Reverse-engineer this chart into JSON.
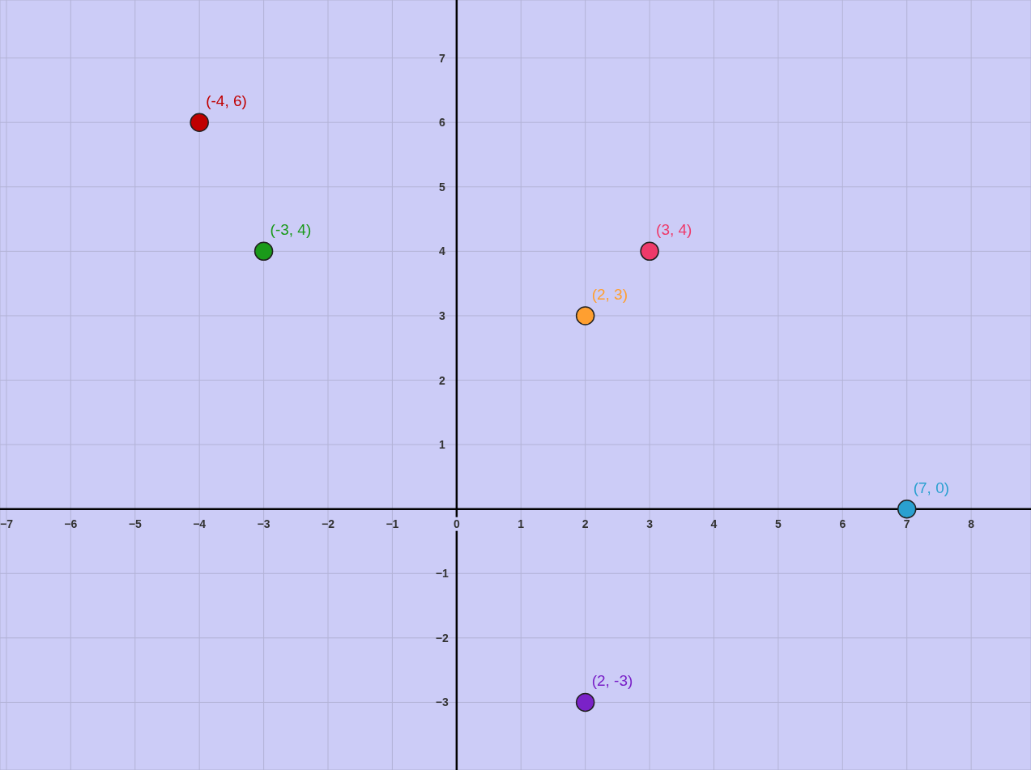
{
  "chart_data": {
    "type": "scatter",
    "x": [
      -4,
      -3,
      3,
      2,
      7,
      2
    ],
    "values": [
      6,
      4,
      4,
      3,
      0,
      -3
    ],
    "colors": [
      "#c00000",
      "#1a9a1a",
      "#ee3a6a",
      "#ff9f30",
      "#2aa0d0",
      "#7a22c8"
    ],
    "value_labels": [
      "(-4, 6)",
      "(-3, 4)",
      "(3, 4)",
      "(2, 3)",
      "(7, 0)",
      "(2, -3)"
    ],
    "xlim": [
      -7.1,
      8.93
    ],
    "ylim": [
      -4.05,
      7.9
    ],
    "xticks": [
      -7,
      -6,
      -5,
      -4,
      -3,
      -2,
      -1,
      0,
      1,
      2,
      3,
      4,
      5,
      6,
      7,
      8
    ],
    "yticks": [
      -3,
      -2,
      -1,
      1,
      2,
      3,
      4,
      5,
      6,
      7
    ],
    "grid": true,
    "marker": "circle"
  }
}
